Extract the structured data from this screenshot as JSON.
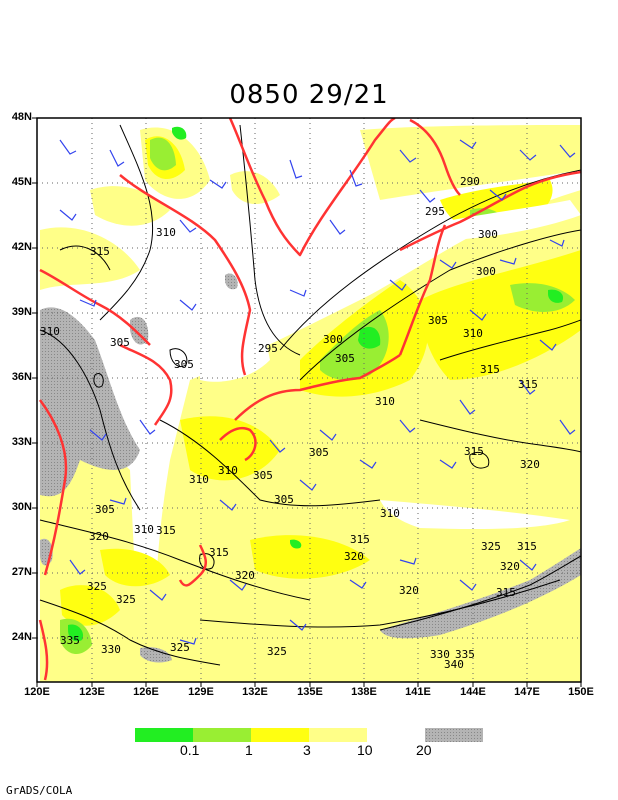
{
  "title": "0850 29/21",
  "credit": "GrADS/COLA",
  "lat_labels": [
    "48N",
    "45N",
    "42N",
    "39N",
    "36N",
    "33N",
    "30N",
    "27N",
    "24N"
  ],
  "lon_labels": [
    "120E",
    "123E",
    "126E",
    "129E",
    "132E",
    "135E",
    "138E",
    "141E",
    "144E",
    "147E",
    "150E"
  ],
  "legend": {
    "labels": [
      "0.1",
      "1",
      "3",
      "10",
      "20"
    ],
    "colors": [
      "#22ee22",
      "#99ee33",
      "#ffff11",
      "#ffff88",
      "#b4b4b4"
    ]
  },
  "contour_labels": [
    "290",
    "295",
    "300",
    "300",
    "310",
    "315",
    "305",
    "305",
    "310",
    "295",
    "300",
    "305",
    "305",
    "310",
    "310",
    "315",
    "315",
    "315",
    "320",
    "310",
    "305",
    "305",
    "305",
    "310",
    "305",
    "315",
    "310",
    "320",
    "315",
    "325",
    "315",
    "320",
    "320",
    "325",
    "325",
    "320",
    "315",
    "320",
    "325",
    "330",
    "325",
    "335",
    "330",
    "335",
    "340",
    "310",
    "315"
  ],
  "colors": {
    "coastline": "#ff3333",
    "wind_barb": "#3344ee",
    "contour": "#000000",
    "grid": "#888888"
  }
}
